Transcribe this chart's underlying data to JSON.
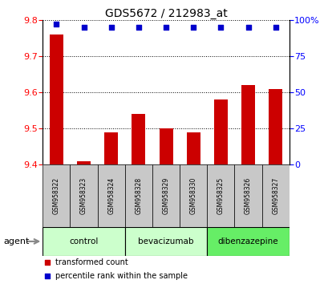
{
  "title": "GDS5672 / 212983_at",
  "samples": [
    "GSM958322",
    "GSM958323",
    "GSM958324",
    "GSM958328",
    "GSM958329",
    "GSM958330",
    "GSM958325",
    "GSM958326",
    "GSM958327"
  ],
  "bar_values": [
    9.76,
    9.41,
    9.49,
    9.54,
    9.5,
    9.49,
    9.58,
    9.62,
    9.61
  ],
  "percentile_values": [
    97,
    95,
    95,
    95,
    95,
    95,
    95,
    95,
    95
  ],
  "bar_color": "#cc0000",
  "dot_color": "#0000cc",
  "ylim_left": [
    9.4,
    9.8
  ],
  "ylim_right": [
    0,
    100
  ],
  "yticks_left": [
    9.4,
    9.5,
    9.6,
    9.7,
    9.8
  ],
  "yticks_right": [
    0,
    25,
    50,
    75,
    100
  ],
  "ytick_labels_right": [
    "0",
    "25",
    "50",
    "75",
    "100%"
  ],
  "groups": [
    {
      "label": "control",
      "indices": [
        0,
        1,
        2
      ],
      "color": "#ccffcc"
    },
    {
      "label": "bevacizumab",
      "indices": [
        3,
        4,
        5
      ],
      "color": "#ccffcc"
    },
    {
      "label": "dibenzazepine",
      "indices": [
        6,
        7,
        8
      ],
      "color": "#66ee66"
    }
  ],
  "agent_label": "agent",
  "background_color": "#ffffff",
  "plot_bg_color": "#ffffff",
  "bar_width": 0.5,
  "sample_box_color": "#c8c8c8",
  "legend_items": [
    {
      "label": "transformed count",
      "color": "#cc0000"
    },
    {
      "label": "percentile rank within the sample",
      "color": "#0000cc"
    }
  ]
}
